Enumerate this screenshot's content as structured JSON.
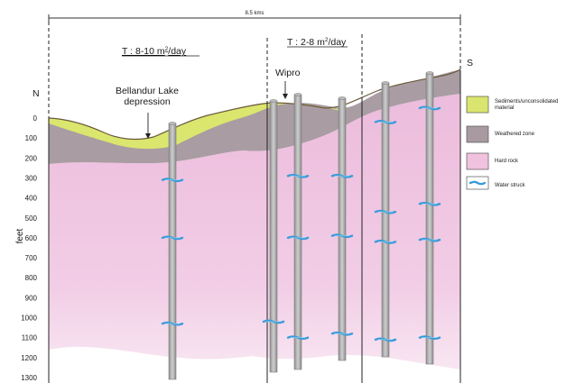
{
  "scale_label": "8.5 kms",
  "transmissivity_left": {
    "prefix": "T : 8-10 m",
    "sup": "2",
    "suffix": "/day"
  },
  "transmissivity_right": {
    "prefix": "T : 2-8 m",
    "sup": "2",
    "suffix": "/day"
  },
  "place_labels": {
    "lake_line1": "Bellandur Lake",
    "lake_line2": "depression",
    "wipro": "Wipro"
  },
  "compass": {
    "north": "N",
    "south": "S"
  },
  "y_axis": {
    "label": "feet",
    "ticks": [
      "0",
      "100",
      "200",
      "300",
      "400",
      "500",
      "600",
      "700",
      "800",
      "900",
      "1000",
      "1100",
      "1200",
      "1300"
    ]
  },
  "legend": [
    {
      "line1": "Sediments/unconsolidated",
      "line2": "material",
      "color": "#d9e56e"
    },
    {
      "line1": "Weathered zone",
      "line2": "",
      "color": "#a89aa0"
    },
    {
      "line1": "Hard rock",
      "line2": "",
      "color": "#f0c2de"
    },
    {
      "line1": "Water struck",
      "line2": "",
      "color": "#3a9bd8"
    }
  ],
  "water_struck_depths_ft": [
    {
      "well": 1,
      "depths": [
        310,
        600,
        1030
      ]
    },
    {
      "well": 2,
      "depths": [
        1020
      ]
    },
    {
      "well": 3,
      "depths": [
        290,
        600,
        1100
      ]
    },
    {
      "well": 4,
      "depths": [
        290,
        590,
        1080
      ]
    },
    {
      "well": 5,
      "depths": [
        20,
        470,
        620,
        1110
      ]
    },
    {
      "well": 6,
      "depths": [
        -50,
        430,
        610,
        1100
      ]
    }
  ]
}
